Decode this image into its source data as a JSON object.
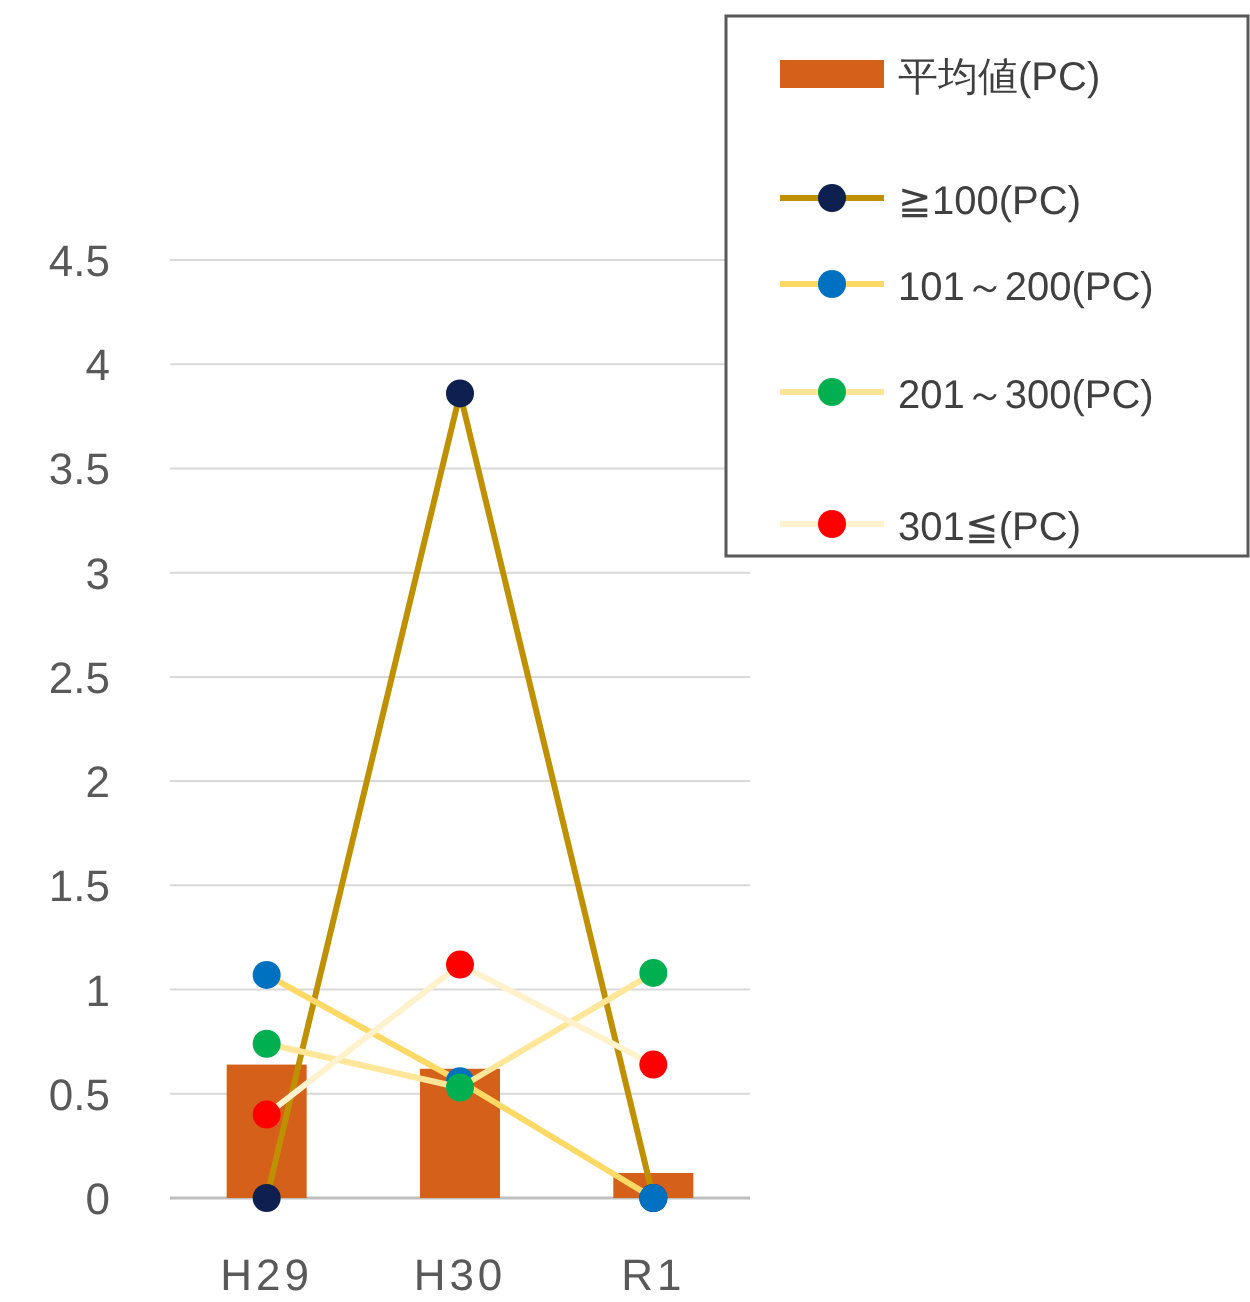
{
  "chart_data": {
    "type": "bar",
    "categories": [
      "H29",
      "H30",
      "R1"
    ],
    "ylim": [
      0,
      4.5
    ],
    "yticks": [
      0,
      0.5,
      1,
      1.5,
      2,
      2.5,
      3,
      3.5,
      4,
      4.5
    ],
    "grid": "y",
    "legend": "top right",
    "marker": "circle",
    "series": [
      {
        "name": "平均値(PC)",
        "color": "#d4601a",
        "values": [
          0.64,
          0.62,
          0.12
        ]
      },
      {
        "name": "≧100(PC)",
        "type": "line",
        "color": "#bf9000",
        "colors": [
          "#0d2050",
          "#0d2050",
          "#0d2050"
        ],
        "values": [
          0,
          3.86,
          0
        ]
      },
      {
        "name": "101～200(PC)",
        "type": "line",
        "color": "#ffd966",
        "colors": [
          "#0070c0",
          "#0070c0",
          "#0070c0"
        ],
        "values": [
          1.07,
          0.56,
          0
        ]
      },
      {
        "name": "201～300(PC)",
        "type": "line",
        "color": "#ffe699",
        "colors": [
          "#00b050",
          "#00b050",
          "#00b050"
        ],
        "values": [
          0.74,
          0.53,
          1.08
        ]
      },
      {
        "name": "301≦(PC)",
        "type": "line",
        "color": "#fff2cc",
        "colors": [
          "#ff0000",
          "#ff0000",
          "#ff0000"
        ],
        "values": [
          0.4,
          1.12,
          0.64
        ]
      }
    ]
  }
}
